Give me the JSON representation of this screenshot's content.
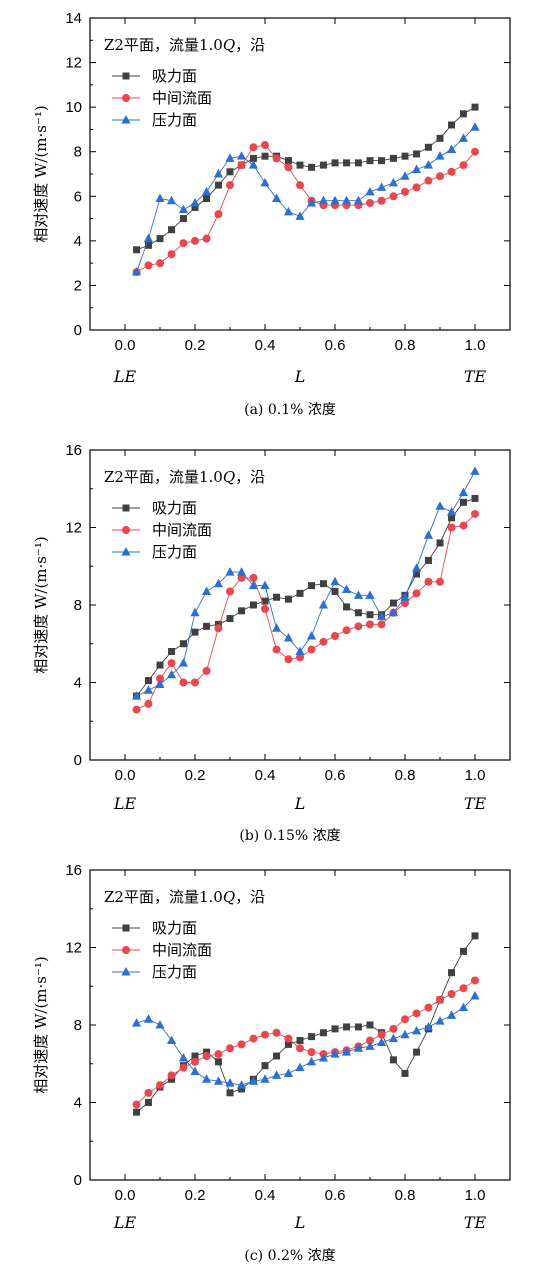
{
  "chart_data": [
    {
      "type": "line",
      "title_prefix": "Z2平面，流量1.0",
      "title_q": "Q",
      "title_suffix": "，沿",
      "ylabel": "相对速度 W/(m·s⁻¹)",
      "xlim": [
        -0.1,
        1.1
      ],
      "ylim": [
        0,
        14
      ],
      "xticks": [
        "0.0",
        "0.2",
        "0.4",
        "0.6",
        "0.8",
        "1.0"
      ],
      "yticks": [
        "0",
        "2",
        "4",
        "6",
        "8",
        "10",
        "12",
        "14"
      ],
      "x_positions": [
        "LE",
        "L",
        "TE"
      ],
      "caption": "(a) 0.1% 浓度",
      "series": [
        {
          "name": "吸力面",
          "color": "#404040",
          "marker": "square",
          "x": [
            0.033,
            0.067,
            0.1,
            0.133,
            0.167,
            0.2,
            0.233,
            0.267,
            0.3,
            0.333,
            0.367,
            0.4,
            0.433,
            0.467,
            0.5,
            0.533,
            0.567,
            0.6,
            0.633,
            0.667,
            0.7,
            0.733,
            0.767,
            0.8,
            0.833,
            0.867,
            0.9,
            0.933,
            0.967,
            1.0
          ],
          "y": [
            3.6,
            3.8,
            4.1,
            4.5,
            5.0,
            5.5,
            5.9,
            6.5,
            7.1,
            7.4,
            7.7,
            7.8,
            7.8,
            7.6,
            7.4,
            7.3,
            7.4,
            7.5,
            7.5,
            7.5,
            7.6,
            7.6,
            7.7,
            7.8,
            7.9,
            8.2,
            8.6,
            9.2,
            9.7,
            10.0
          ]
        },
        {
          "name": "中间流面",
          "color": "#e8474f",
          "marker": "circle",
          "x": [
            0.033,
            0.067,
            0.1,
            0.133,
            0.167,
            0.2,
            0.233,
            0.267,
            0.3,
            0.333,
            0.367,
            0.4,
            0.433,
            0.467,
            0.5,
            0.533,
            0.567,
            0.6,
            0.633,
            0.667,
            0.7,
            0.733,
            0.767,
            0.8,
            0.833,
            0.867,
            0.9,
            0.933,
            0.967,
            1.0
          ],
          "y": [
            2.6,
            2.9,
            3.0,
            3.4,
            3.9,
            4.0,
            4.1,
            5.2,
            6.5,
            7.4,
            8.2,
            8.3,
            7.7,
            7.3,
            6.5,
            5.8,
            5.6,
            5.6,
            5.6,
            5.6,
            5.7,
            5.8,
            6.0,
            6.2,
            6.4,
            6.7,
            6.9,
            7.1,
            7.4,
            8.0
          ]
        },
        {
          "name": "压力面",
          "color": "#2d6fd0",
          "marker": "triangle",
          "x": [
            0.033,
            0.067,
            0.1,
            0.133,
            0.167,
            0.2,
            0.233,
            0.267,
            0.3,
            0.333,
            0.367,
            0.4,
            0.433,
            0.467,
            0.5,
            0.533,
            0.567,
            0.6,
            0.633,
            0.667,
            0.7,
            0.733,
            0.767,
            0.8,
            0.833,
            0.867,
            0.9,
            0.933,
            0.967,
            1.0
          ],
          "y": [
            2.6,
            4.1,
            5.9,
            5.8,
            5.4,
            5.7,
            6.2,
            7.0,
            7.7,
            7.8,
            7.4,
            6.6,
            5.9,
            5.3,
            5.1,
            5.7,
            5.8,
            5.8,
            5.8,
            5.8,
            6.2,
            6.4,
            6.6,
            6.9,
            7.2,
            7.4,
            7.8,
            8.1,
            8.6,
            9.1
          ]
        }
      ]
    },
    {
      "type": "line",
      "title_prefix": "Z2平面，流量1.0",
      "title_q": "Q",
      "title_suffix": "，沿",
      "ylabel": "相对速度 W/(m·s⁻¹)",
      "xlim": [
        -0.1,
        1.1
      ],
      "ylim": [
        0,
        16
      ],
      "xticks": [
        "0.0",
        "0.2",
        "0.4",
        "0.6",
        "0.8",
        "1.0"
      ],
      "yticks": [
        "0",
        "4",
        "8",
        "12",
        "16"
      ],
      "x_positions": [
        "LE",
        "L",
        "TE"
      ],
      "caption": "(b) 0.15% 浓度",
      "series": [
        {
          "name": "吸力面",
          "color": "#404040",
          "marker": "square",
          "x": [
            0.033,
            0.067,
            0.1,
            0.133,
            0.167,
            0.2,
            0.233,
            0.267,
            0.3,
            0.333,
            0.367,
            0.4,
            0.433,
            0.467,
            0.5,
            0.533,
            0.567,
            0.6,
            0.633,
            0.667,
            0.7,
            0.733,
            0.767,
            0.8,
            0.833,
            0.867,
            0.9,
            0.933,
            0.967,
            1.0
          ],
          "y": [
            3.3,
            4.1,
            4.9,
            5.6,
            6.0,
            6.6,
            6.9,
            7.0,
            7.3,
            7.7,
            8.0,
            8.2,
            8.4,
            8.3,
            8.6,
            9.0,
            9.1,
            8.7,
            7.9,
            7.6,
            7.5,
            7.5,
            8.1,
            8.5,
            9.6,
            10.3,
            11.2,
            12.5,
            13.3,
            13.5
          ]
        },
        {
          "name": "中间流面",
          "color": "#e8474f",
          "marker": "circle",
          "x": [
            0.033,
            0.067,
            0.1,
            0.133,
            0.167,
            0.2,
            0.233,
            0.267,
            0.3,
            0.333,
            0.367,
            0.4,
            0.433,
            0.467,
            0.5,
            0.533,
            0.567,
            0.6,
            0.633,
            0.667,
            0.7,
            0.733,
            0.767,
            0.8,
            0.833,
            0.867,
            0.9,
            0.933,
            0.967,
            1.0
          ],
          "y": [
            2.6,
            2.9,
            4.2,
            5.0,
            4.0,
            4.0,
            4.6,
            6.8,
            8.7,
            9.4,
            9.4,
            7.8,
            5.7,
            5.2,
            5.3,
            5.7,
            6.1,
            6.4,
            6.7,
            6.9,
            7.0,
            7.0,
            7.6,
            8.1,
            8.6,
            9.2,
            9.2,
            12.0,
            12.1,
            12.7
          ]
        },
        {
          "name": "压力面",
          "color": "#2d6fd0",
          "marker": "triangle",
          "x": [
            0.033,
            0.067,
            0.1,
            0.133,
            0.167,
            0.2,
            0.233,
            0.267,
            0.3,
            0.333,
            0.367,
            0.4,
            0.433,
            0.467,
            0.5,
            0.533,
            0.567,
            0.6,
            0.633,
            0.667,
            0.7,
            0.733,
            0.767,
            0.8,
            0.833,
            0.867,
            0.9,
            0.933,
            0.967,
            1.0
          ],
          "y": [
            3.3,
            3.6,
            3.9,
            4.4,
            5.0,
            7.6,
            8.7,
            9.1,
            9.7,
            9.7,
            9.0,
            9.0,
            6.8,
            6.3,
            5.6,
            6.4,
            8.0,
            9.2,
            8.8,
            8.5,
            8.5,
            7.4,
            7.6,
            8.4,
            9.9,
            11.6,
            13.1,
            12.8,
            13.8,
            14.9
          ]
        }
      ]
    },
    {
      "type": "line",
      "title_prefix": "Z2平面，流量1.0",
      "title_q": "Q",
      "title_suffix": "，沿",
      "ylabel": "相对速度 W/(m·s⁻¹)",
      "xlim": [
        -0.1,
        1.1
      ],
      "ylim": [
        0,
        16
      ],
      "xticks": [
        "0.0",
        "0.2",
        "0.4",
        "0.6",
        "0.8",
        "1.0"
      ],
      "yticks": [
        "0",
        "4",
        "8",
        "12",
        "16"
      ],
      "x_positions": [
        "LE",
        "L",
        "TE"
      ],
      "caption": "(c) 0.2% 浓度",
      "series": [
        {
          "name": "吸力面",
          "color": "#404040",
          "marker": "square",
          "x": [
            0.033,
            0.067,
            0.1,
            0.133,
            0.167,
            0.2,
            0.233,
            0.267,
            0.3,
            0.333,
            0.367,
            0.4,
            0.433,
            0.467,
            0.5,
            0.533,
            0.567,
            0.6,
            0.633,
            0.667,
            0.7,
            0.733,
            0.767,
            0.8,
            0.833,
            0.867,
            0.9,
            0.933,
            0.967,
            1.0
          ],
          "y": [
            3.5,
            4.0,
            4.8,
            5.2,
            5.9,
            6.4,
            6.6,
            6.1,
            4.5,
            4.7,
            5.2,
            5.9,
            6.4,
            7.0,
            7.2,
            7.4,
            7.6,
            7.8,
            7.9,
            7.9,
            8.0,
            7.6,
            6.2,
            5.5,
            6.6,
            7.8,
            9.3,
            10.7,
            11.8,
            12.6
          ]
        },
        {
          "name": "中间流面",
          "color": "#e8474f",
          "marker": "circle",
          "x": [
            0.033,
            0.067,
            0.1,
            0.133,
            0.167,
            0.2,
            0.233,
            0.267,
            0.3,
            0.333,
            0.367,
            0.4,
            0.433,
            0.467,
            0.5,
            0.533,
            0.567,
            0.6,
            0.633,
            0.667,
            0.7,
            0.733,
            0.767,
            0.8,
            0.833,
            0.867,
            0.9,
            0.933,
            0.967,
            1.0
          ],
          "y": [
            3.9,
            4.5,
            4.9,
            5.4,
            5.8,
            6.1,
            6.4,
            6.5,
            6.8,
            7.0,
            7.3,
            7.5,
            7.6,
            7.3,
            6.8,
            6.6,
            6.5,
            6.6,
            6.7,
            6.9,
            7.2,
            7.5,
            7.8,
            8.3,
            8.6,
            8.9,
            9.3,
            9.6,
            9.9,
            10.3
          ]
        },
        {
          "name": "压力面",
          "color": "#2d6fd0",
          "marker": "triangle",
          "x": [
            0.033,
            0.067,
            0.1,
            0.133,
            0.167,
            0.2,
            0.233,
            0.267,
            0.3,
            0.333,
            0.367,
            0.4,
            0.433,
            0.467,
            0.5,
            0.533,
            0.567,
            0.6,
            0.633,
            0.667,
            0.7,
            0.733,
            0.767,
            0.8,
            0.833,
            0.867,
            0.9,
            0.933,
            0.967,
            1.0
          ],
          "y": [
            8.1,
            8.3,
            8.0,
            7.2,
            6.3,
            5.6,
            5.2,
            5.1,
            5.0,
            4.9,
            5.1,
            5.2,
            5.4,
            5.5,
            5.8,
            6.1,
            6.3,
            6.5,
            6.6,
            6.8,
            6.9,
            7.1,
            7.3,
            7.5,
            7.7,
            7.9,
            8.2,
            8.5,
            8.9,
            9.5
          ]
        }
      ]
    }
  ]
}
